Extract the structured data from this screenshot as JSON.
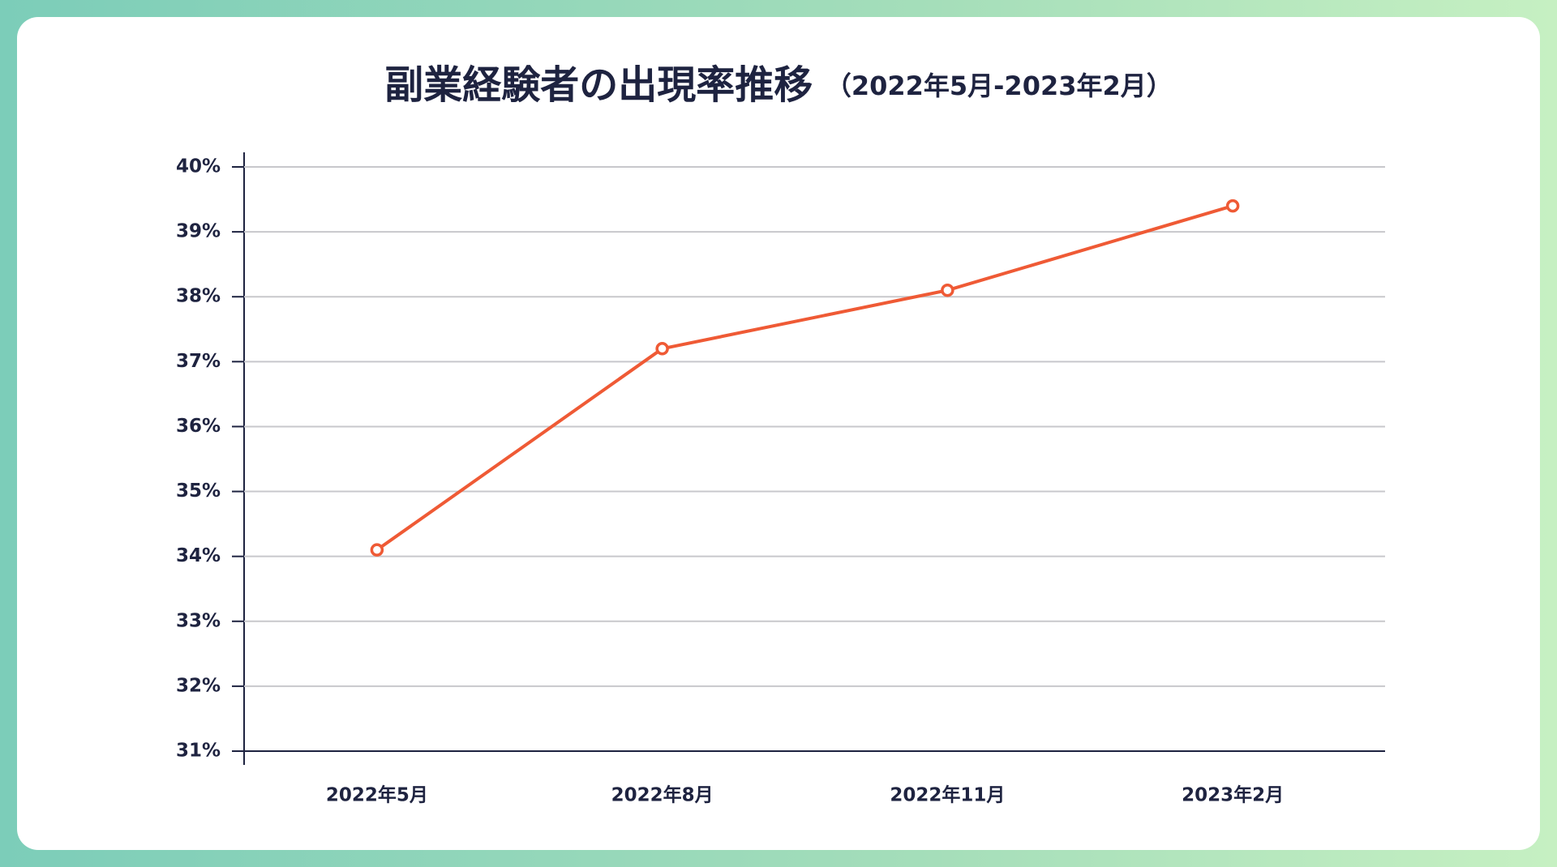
{
  "chart_data": {
    "type": "line",
    "title": "副業経験者の出現率推移",
    "subtitle": "（2022年5月-2023年2月）",
    "categories": [
      "2022年5月",
      "2022年8月",
      "2022年11月",
      "2023年2月"
    ],
    "values": [
      34.1,
      37.2,
      38.1,
      39.4
    ],
    "color": "#ef5a35",
    "ylim": [
      31,
      40
    ],
    "yticks": [
      {
        "value": 31,
        "label": "31%"
      },
      {
        "value": 32,
        "label": "32%"
      },
      {
        "value": 33,
        "label": "33%"
      },
      {
        "value": 34,
        "label": "34%"
      },
      {
        "value": 35,
        "label": "35%"
      },
      {
        "value": 36,
        "label": "36%"
      },
      {
        "value": 37,
        "label": "37%"
      },
      {
        "value": 38,
        "label": "38%"
      },
      {
        "value": 39,
        "label": "39%"
      },
      {
        "value": 40,
        "label": "40%"
      }
    ],
    "grid": true
  }
}
